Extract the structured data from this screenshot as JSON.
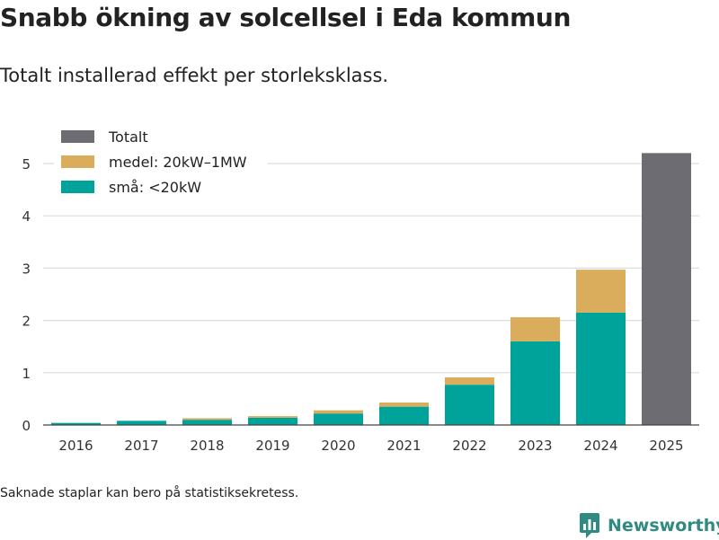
{
  "title": "Snabb ökning av solcellsel i Eda kommun",
  "subtitle": "Totalt installerad effekt per storleksklass.",
  "footnote": "Saknade staplar kan bero på statistiksekretess.",
  "brand": {
    "name": "Newsworthy",
    "color": "#2f8a82",
    "icon": "newsworthy-logo-icon"
  },
  "chart_data": {
    "type": "bar",
    "stacked": true,
    "title": "",
    "xlabel": "",
    "ylabel": "",
    "ylim": [
      0,
      5.4
    ],
    "yticks": [
      0,
      1,
      2,
      3,
      4,
      5
    ],
    "grid": true,
    "legend_position": "top-left",
    "categories": [
      "2016",
      "2017",
      "2018",
      "2019",
      "2020",
      "2021",
      "2022",
      "2023",
      "2024",
      "2025"
    ],
    "series": [
      {
        "name": "Totalt",
        "color": "#6d6c72",
        "values": [
          null,
          null,
          null,
          null,
          null,
          null,
          null,
          null,
          null,
          5.2
        ]
      },
      {
        "name": "medel: 20kW–1MW",
        "color": "#d9ad5b",
        "values": [
          0,
          0,
          0.03,
          0.03,
          0.06,
          0.08,
          0.14,
          0.46,
          0.82,
          null
        ]
      },
      {
        "name": "små: <20kW",
        "color": "#00a39a",
        "values": [
          0.04,
          0.08,
          0.1,
          0.14,
          0.22,
          0.35,
          0.77,
          1.6,
          2.15,
          null
        ]
      }
    ]
  }
}
